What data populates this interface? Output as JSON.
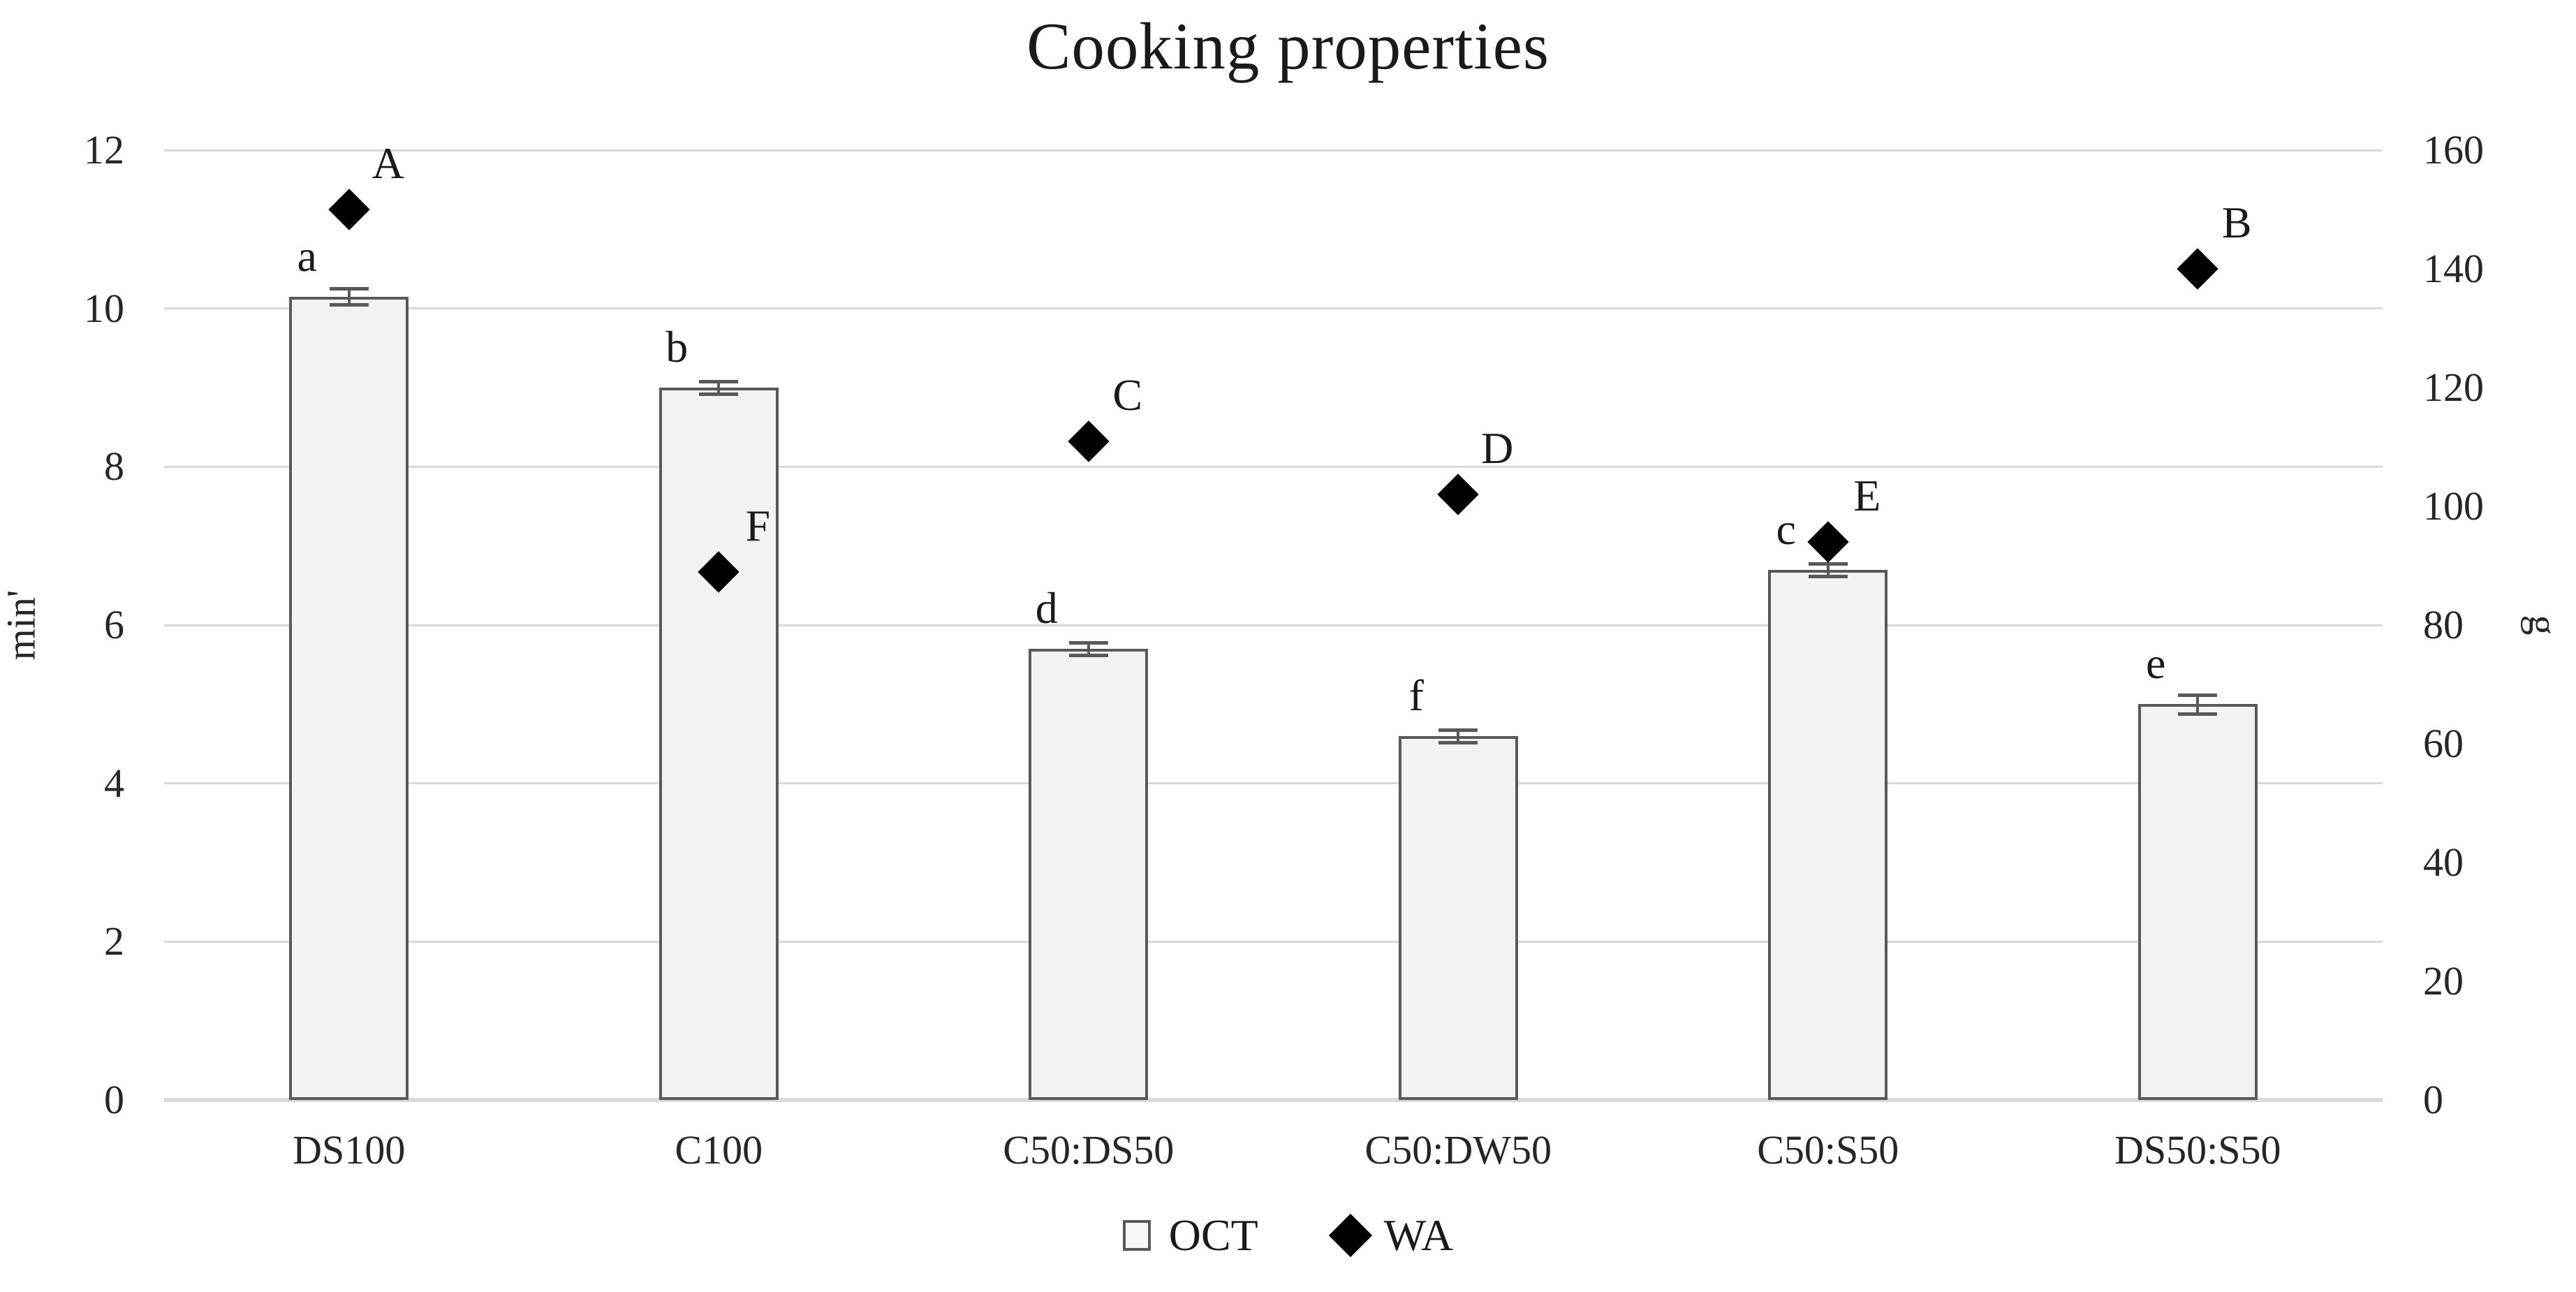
{
  "chart_data": {
    "type": "combo",
    "subtype": "bar + scatter (secondary axis)",
    "title": "Cooking properties",
    "categories": [
      "DS100",
      "C100",
      "C50:DS50",
      "C50:DW50",
      "C50:S50",
      "DS50:S50"
    ],
    "series": [
      {
        "name": "OCT",
        "type": "bar",
        "axis": "left",
        "values": [
          10.15,
          9.0,
          5.7,
          4.6,
          6.7,
          5.0
        ],
        "errors": [
          0.1,
          0.08,
          0.08,
          0.08,
          0.08,
          0.12
        ],
        "point_labels": [
          "a",
          "b",
          "d",
          "f",
          "c",
          "e"
        ]
      },
      {
        "name": "WA",
        "type": "scatter",
        "marker": "diamond",
        "axis": "right",
        "values": [
          150,
          89,
          111,
          102,
          94,
          140
        ],
        "point_labels": [
          "A",
          "F",
          "C",
          "D",
          "E",
          "B"
        ]
      }
    ],
    "left_axis": {
      "label": "min'",
      "min": 0,
      "max": 12,
      "ticks": [
        0,
        2,
        4,
        6,
        8,
        10,
        12
      ]
    },
    "right_axis": {
      "label": "g",
      "min": 0,
      "max": 160,
      "ticks": [
        0,
        20,
        40,
        60,
        80,
        100,
        120,
        140,
        160
      ]
    },
    "legend": [
      {
        "marker": "square-outline",
        "label": "OCT"
      },
      {
        "marker": "diamond-filled",
        "label": "WA"
      }
    ],
    "grid": "horizontal",
    "legend_position": "bottom",
    "colors": {
      "bar_fill": "#f2f2f2",
      "bar_border": "#595959",
      "marker": "#000000",
      "gridline": "#d9d9d9",
      "text": "#1a1a1a"
    }
  }
}
